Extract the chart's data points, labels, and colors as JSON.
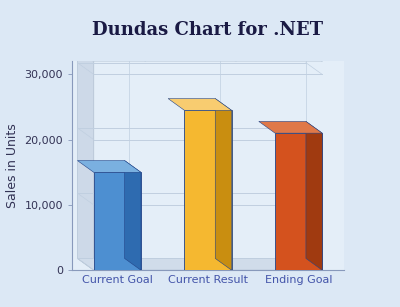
{
  "title": "Dundas Chart for .NET",
  "categories": [
    "Current Goal",
    "Current Result",
    "Ending Goal"
  ],
  "values": [
    15000,
    24500,
    21000
  ],
  "bar_colors": [
    "#4d8fd1",
    "#f5b830",
    "#d4521e"
  ],
  "bar_side_colors": [
    "#2e6bb0",
    "#c98e10",
    "#a03a10"
  ],
  "bar_top_colors": [
    "#7ab0e0",
    "#f8cc70",
    "#e07848"
  ],
  "ylabel": "Sales in Units",
  "ylim": [
    0,
    32000
  ],
  "yticks": [
    0,
    10000,
    20000,
    30000
  ],
  "ytick_labels": [
    "0",
    "10,000",
    "20,000",
    "30,000"
  ],
  "background_outer": "#dce8f5",
  "background_plot": "#e4eef8",
  "side_panel_color": "#c8d8ea",
  "floor_color": "#d0dcea",
  "grid_color": "#c0cfe0",
  "left_wall_color": "#cdd9e8",
  "title_fontsize": 13,
  "ylabel_fontsize": 9,
  "tick_fontsize": 8
}
